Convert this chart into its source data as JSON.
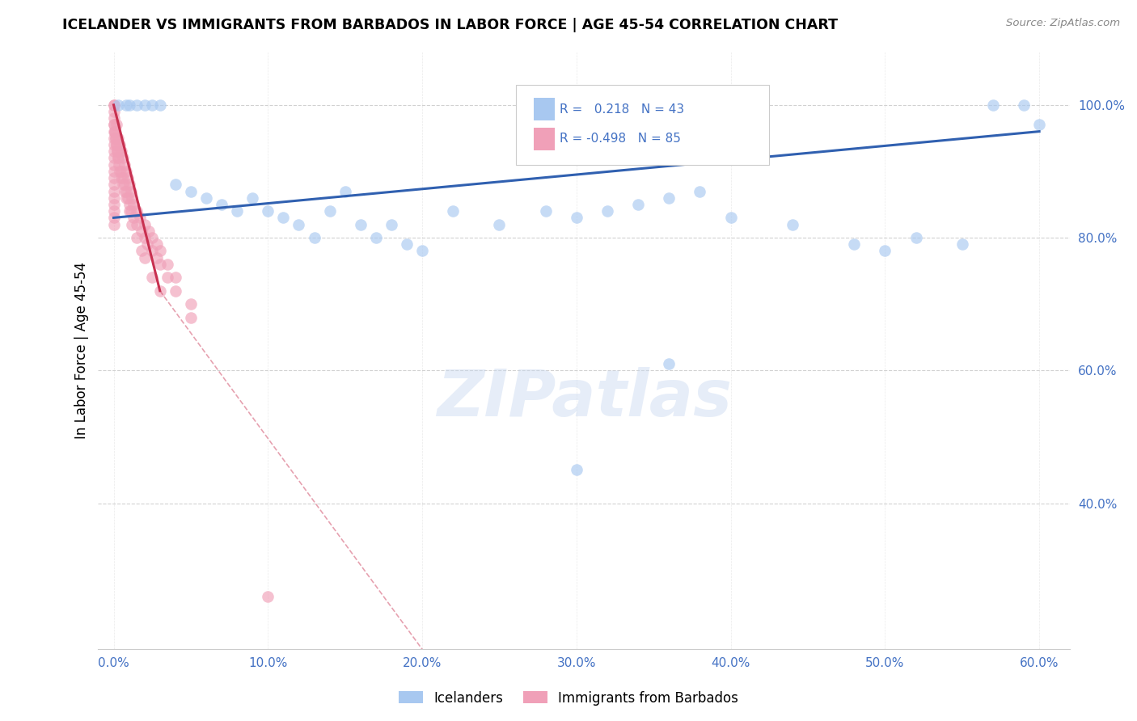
{
  "title": "ICELANDER VS IMMIGRANTS FROM BARBADOS IN LABOR FORCE | AGE 45-54 CORRELATION CHART",
  "source": "Source: ZipAtlas.com",
  "xlabel_ticks": [
    "0.0%",
    "10.0%",
    "20.0%",
    "30.0%",
    "40.0%",
    "50.0%",
    "60.0%"
  ],
  "ylabel_ticks": [
    "100.0%",
    "80.0%",
    "60.0%",
    "40.0%"
  ],
  "xlabel_vals": [
    0,
    10,
    20,
    30,
    40,
    50,
    60
  ],
  "ylabel_vals": [
    100,
    80,
    60,
    40
  ],
  "xlim": [
    -1,
    62
  ],
  "ylim": [
    18,
    108
  ],
  "ylabel": "In Labor Force | Age 45-54",
  "legend_label1": "Icelanders",
  "legend_label2": "Immigrants from Barbados",
  "R1": "0.218",
  "N1": "43",
  "R2": "-0.498",
  "N2": "85",
  "color_blue": "#a8c8f0",
  "color_pink": "#f0a0b8",
  "color_line_blue": "#3060b0",
  "color_line_pink": "#c83050",
  "watermark": "ZIPatlas",
  "blue_x": [
    0.3,
    0.8,
    1.0,
    1.5,
    2.0,
    2.5,
    3.0,
    4.0,
    5.0,
    6.0,
    7.0,
    8.0,
    9.0,
    10.0,
    11.0,
    12.0,
    13.0,
    14.0,
    15.0,
    16.0,
    17.0,
    18.0,
    19.0,
    20.0,
    22.0,
    25.0,
    28.0,
    30.0,
    32.0,
    34.0,
    36.0,
    38.0,
    40.0,
    44.0,
    48.0,
    50.0,
    52.0,
    55.0,
    57.0,
    59.0,
    60.0,
    30.0,
    36.0
  ],
  "blue_y": [
    100,
    100,
    100,
    100,
    100,
    100,
    100,
    88,
    87,
    86,
    85,
    84,
    86,
    84,
    83,
    82,
    80,
    84,
    87,
    82,
    80,
    82,
    79,
    78,
    84,
    82,
    84,
    83,
    84,
    85,
    86,
    87,
    83,
    82,
    79,
    78,
    80,
    79,
    100,
    100,
    97,
    45,
    61
  ],
  "pink_x": [
    0.0,
    0.0,
    0.0,
    0.0,
    0.0,
    0.0,
    0.0,
    0.0,
    0.0,
    0.0,
    0.0,
    0.0,
    0.0,
    0.0,
    0.0,
    0.0,
    0.0,
    0.0,
    0.0,
    0.0,
    0.2,
    0.3,
    0.4,
    0.5,
    0.6,
    0.7,
    0.8,
    0.9,
    1.0,
    1.1,
    1.2,
    1.3,
    1.5,
    1.7,
    2.0,
    2.3,
    2.5,
    2.8,
    3.0,
    3.5,
    4.0,
    5.0,
    0.1,
    0.15,
    0.2,
    0.25,
    0.3,
    0.35,
    0.5,
    0.6,
    0.7,
    0.8,
    0.9,
    1.0,
    1.1,
    1.3,
    1.5,
    1.8,
    2.0,
    2.2,
    2.5,
    2.8,
    3.0,
    3.5,
    4.0,
    5.0,
    0.05,
    0.1,
    0.15,
    0.2,
    0.25,
    0.3,
    0.4,
    0.5,
    0.6,
    0.7,
    0.8,
    1.0,
    1.2,
    1.5,
    1.8,
    2.0,
    2.5,
    10.0,
    3.0
  ],
  "pink_y": [
    100,
    100,
    99,
    98,
    97,
    96,
    95,
    94,
    93,
    92,
    91,
    90,
    89,
    88,
    87,
    86,
    85,
    84,
    83,
    82,
    97,
    95,
    94,
    93,
    92,
    91,
    90,
    89,
    88,
    87,
    86,
    85,
    84,
    83,
    82,
    81,
    80,
    79,
    78,
    76,
    74,
    70,
    96,
    95,
    94,
    93,
    92,
    91,
    90,
    89,
    88,
    87,
    86,
    85,
    84,
    83,
    82,
    81,
    80,
    79,
    78,
    77,
    76,
    74,
    72,
    68,
    97,
    96,
    95,
    94,
    93,
    92,
    90,
    89,
    88,
    87,
    86,
    84,
    82,
    80,
    78,
    77,
    74,
    26,
    72
  ],
  "blue_line": [
    0,
    60,
    83,
    96
  ],
  "pink_line_solid": [
    0,
    3,
    100,
    72
  ],
  "pink_line_dash": [
    3,
    20,
    72,
    18
  ]
}
